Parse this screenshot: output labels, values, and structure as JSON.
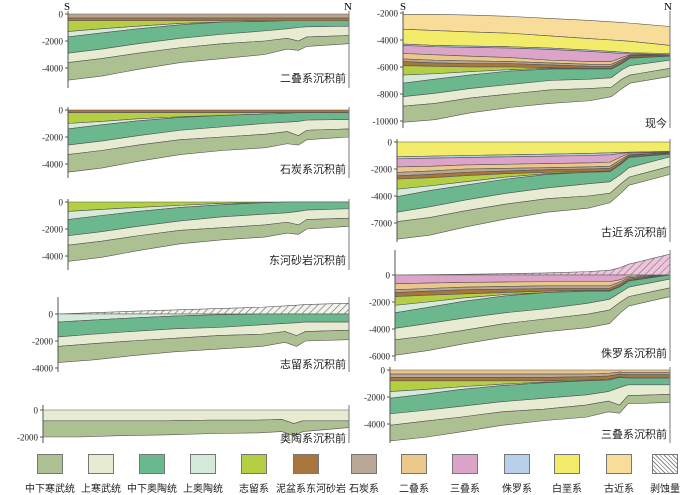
{
  "orientation": {
    "south": "S",
    "north": "N"
  },
  "panels": [
    {
      "label": "二叠系沉积前",
      "ticks": [
        "0",
        "-2000",
        "-4000"
      ]
    },
    {
      "label": "石炭系沉积前",
      "ticks": [
        "0",
        "-2000",
        "-4000"
      ]
    },
    {
      "label": "东河砂岩沉积前",
      "ticks": [
        "0",
        "-2000",
        "-4000"
      ]
    },
    {
      "label": "志留系沉积前",
      "ticks": [
        "0",
        "-2000",
        "-4000"
      ]
    },
    {
      "label": "奥陶系沉积前",
      "ticks": [
        "0",
        "-2000"
      ]
    },
    {
      "label": "现今",
      "ticks": [
        "-2000",
        "-4000",
        "-6000",
        "-8000",
        "-10000"
      ]
    },
    {
      "label": "古近系沉积前",
      "ticks": [
        "0",
        "-2000",
        "-4000",
        "-7000"
      ]
    },
    {
      "label": "侏罗系沉积前",
      "ticks": [
        "0",
        "-2000",
        "-4000",
        "-6000"
      ]
    },
    {
      "label": "三叠系沉积前",
      "ticks": [
        "0",
        "-2000",
        "-4000"
      ]
    }
  ],
  "legend": [
    {
      "key": "zxhw",
      "label": "中下寒武统",
      "color": "#adc092"
    },
    {
      "key": "shw",
      "label": "上寒武统",
      "color": "#e6ebd2"
    },
    {
      "key": "zxao",
      "label": "中下奥陶统",
      "color": "#6cb88e"
    },
    {
      "key": "sao",
      "label": "上奥陶统",
      "color": "#d6eadc"
    },
    {
      "key": "zl",
      "label": "志留系",
      "color": "#b5cf45"
    },
    {
      "key": "np",
      "label": "泥盆系东河砂岩",
      "color": "#a8753c"
    },
    {
      "key": "st",
      "label": "石炭系",
      "color": "#b8a795"
    },
    {
      "key": "ed",
      "label": "二叠系",
      "color": "#ebc88a"
    },
    {
      "key": "sd",
      "label": "三叠系",
      "color": "#dca4c8"
    },
    {
      "key": "zlu",
      "label": "侏罗系",
      "color": "#b9d0ea"
    },
    {
      "key": "be",
      "label": "白垩系",
      "color": "#f3ec6b"
    },
    {
      "key": "gj",
      "label": "古近系",
      "color": "#f8dc9a"
    },
    {
      "key": "bs",
      "label": "剥蚀量",
      "color": "hatch"
    }
  ]
}
